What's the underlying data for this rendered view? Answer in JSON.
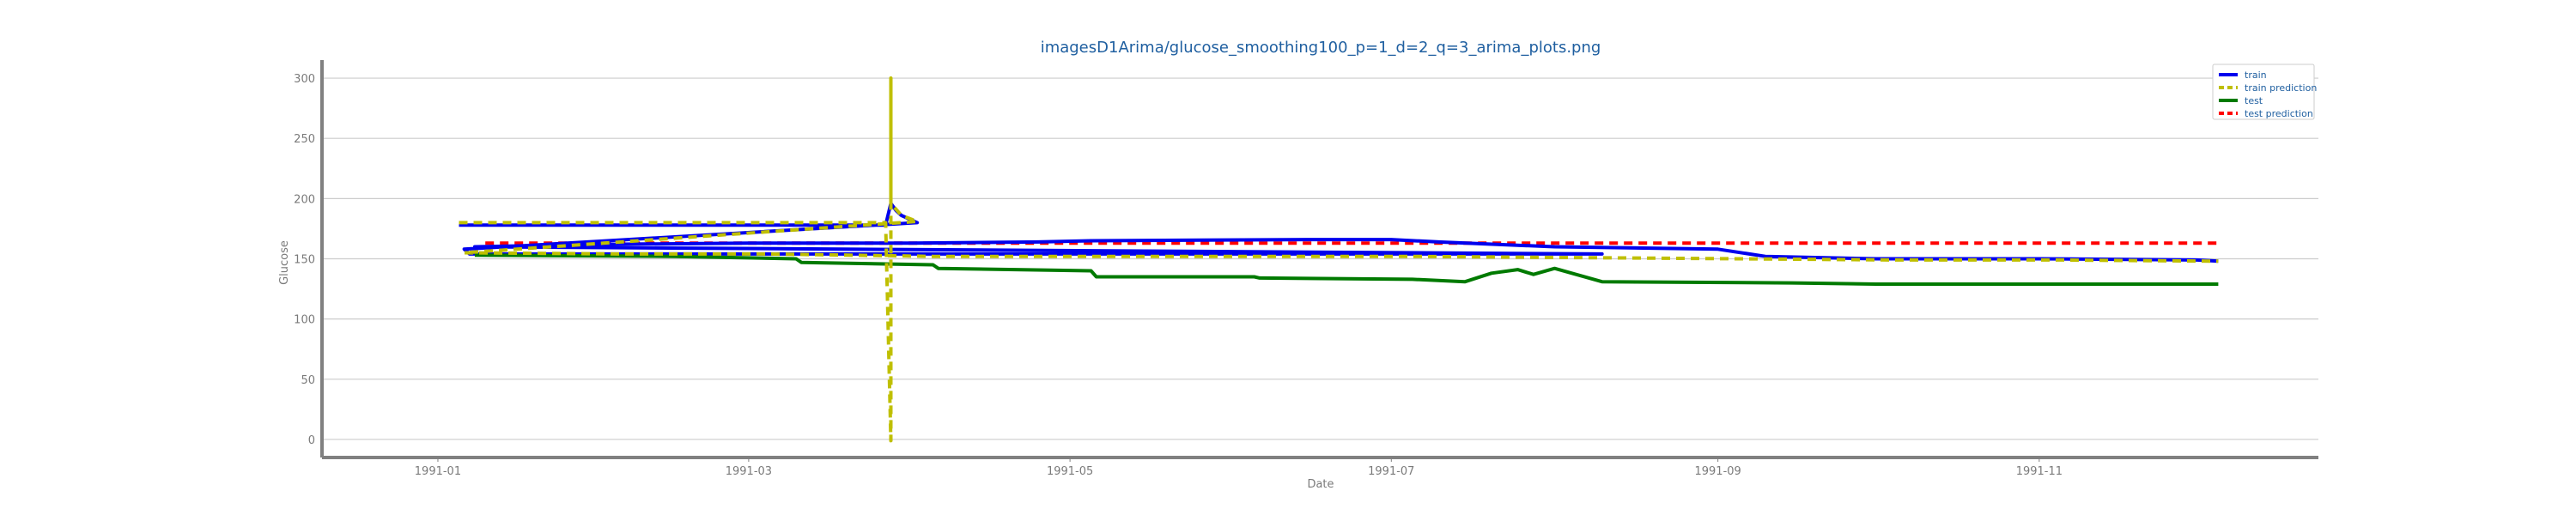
{
  "chart_data": {
    "type": "line",
    "title": "imagesD1Arima/glucose_smoothing100_p=1_d=2_q=3_arima_plots.png",
    "xlabel": "Date",
    "ylabel": "Glucose",
    "x_axis_type": "date",
    "xlim": [
      "1990-12-10",
      "1991-12-24"
    ],
    "ylim": [
      -15,
      315
    ],
    "yticks": [
      0,
      50,
      100,
      150,
      200,
      250,
      300
    ],
    "xticks": [
      "1991-01",
      "1991-03",
      "1991-05",
      "1991-07",
      "1991-09",
      "1991-11"
    ],
    "grid": "horizontal",
    "legend_position": "top-right",
    "colors": {
      "train": "#0000ee",
      "train_prediction": "#bfbf00",
      "test": "#007a00",
      "test_prediction": "#ff0000",
      "title": "#1f5fa0",
      "legend_text": "#1f5fa0",
      "grid": "#cccccc",
      "axis": "#808080"
    },
    "series": [
      {
        "name": "train",
        "style": "solid",
        "x": [
          "1991-01-05",
          "1991-02-05",
          "1991-03-05",
          "1991-03-27",
          "1991-03-28",
          "1991-03-29",
          "1991-03-30",
          "1991-04-01",
          "1991-04-02",
          "1991-01-06",
          "1991-01-07",
          "1991-02-07",
          "1991-03-07",
          "1991-04-15",
          "1991-05-01",
          "1991-05-05",
          "1991-06-15",
          "1991-07-15",
          "1991-08-10",
          "1991-01-08",
          "1991-02-01",
          "1991-03-01",
          "1991-04-01",
          "1991-04-25",
          "1991-05-05",
          "1991-06-15",
          "1991-06-20",
          "1991-07-01",
          "1991-07-10",
          "1991-08-01",
          "1991-09-01",
          "1991-09-10",
          "1991-10-01",
          "1991-11-01",
          "1991-12-01",
          "1991-12-05"
        ],
        "y": [
          178,
          178,
          178,
          178,
          196,
          190,
          186,
          182,
          180,
          158,
          154,
          154,
          154,
          154,
          154,
          154,
          154,
          154,
          154,
          160,
          162,
          163,
          163,
          164,
          165,
          166,
          166,
          166,
          164,
          160,
          158,
          152,
          150,
          150,
          149,
          148
        ]
      },
      {
        "name": "train prediction",
        "style": "dashed",
        "x": [
          "1991-01-05",
          "1991-02-05",
          "1991-03-05",
          "1991-03-27",
          "1991-03-28",
          "1991-03-28",
          "1991-03-28",
          "1991-03-30",
          "1991-04-02",
          "1991-01-06",
          "1991-02-05",
          "1991-03-05",
          "1991-04-05",
          "1991-05-05",
          "1991-06-05",
          "1991-07-05",
          "1991-08-05",
          "1991-09-05",
          "1991-10-05",
          "1991-11-05",
          "1991-12-05"
        ],
        "y": [
          180,
          180,
          180,
          180,
          -1,
          300,
          196,
          186,
          181,
          155,
          154,
          154,
          152,
          152,
          152,
          152,
          151,
          150,
          149,
          149,
          148
        ]
      },
      {
        "name": "test",
        "style": "solid",
        "x": [
          "1991-01-08",
          "1991-02-15",
          "1991-03-10",
          "1991-03-11",
          "1991-04-05",
          "1991-04-06",
          "1991-05-05",
          "1991-05-06",
          "1991-06-05",
          "1991-06-06",
          "1991-07-05",
          "1991-07-15",
          "1991-07-20",
          "1991-07-25",
          "1991-07-28",
          "1991-08-01",
          "1991-08-10",
          "1991-09-15",
          "1991-10-01",
          "1991-11-01",
          "1991-12-05"
        ],
        "y": [
          153,
          152,
          150,
          147,
          145,
          142,
          140,
          135,
          135,
          134,
          133,
          131,
          138,
          141,
          137,
          142,
          131,
          130,
          129,
          129,
          129
        ]
      },
      {
        "name": "test prediction",
        "style": "dashed",
        "x": [
          "1991-01-10",
          "1991-04-01",
          "1991-07-01",
          "1991-10-01",
          "1991-12-05"
        ],
        "y": [
          163,
          163,
          163,
          163,
          163
        ]
      }
    ]
  }
}
